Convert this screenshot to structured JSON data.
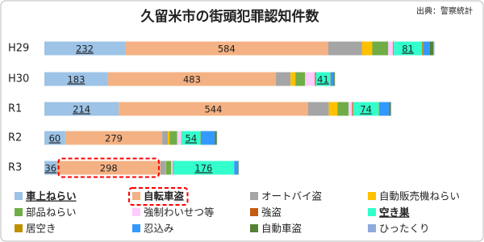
{
  "chart_data": {
    "type": "stacked-bar-horizontal",
    "title": "久留米市の街頭犯罪認知件数",
    "source": "出典：警察統計",
    "categories": [
      "H29",
      "H30",
      "R1",
      "R2",
      "R3"
    ],
    "series": [
      {
        "name": "車上ねらい",
        "color": "#9dc3e6",
        "values": [
          232,
          183,
          214,
          60,
          36
        ],
        "show_labels": true,
        "emphasis": "underline"
      },
      {
        "name": "自転車盗",
        "color": "#f4b183",
        "values": [
          584,
          483,
          544,
          279,
          298
        ],
        "show_labels": true,
        "emphasis": "box"
      },
      {
        "name": "オートバイ盗",
        "color": "#a5a5a5",
        "values": [
          97,
          42,
          60,
          16,
          15
        ]
      },
      {
        "name": "自動販売機ねらい",
        "color": "#ffc000",
        "values": [
          30,
          14,
          25,
          5,
          1
        ]
      },
      {
        "name": "部品ねらい",
        "color": "#70ad47",
        "values": [
          46,
          28,
          32,
          22,
          15
        ]
      },
      {
        "name": "強制わいせつ等",
        "color": "#ffccff",
        "values": [
          14,
          28,
          10,
          12,
          4
        ]
      },
      {
        "name": "強盗",
        "color": "#c55a11",
        "values": [
          2,
          3,
          3,
          1,
          1
        ]
      },
      {
        "name": "空き巣",
        "color": "#33ffcc",
        "values": [
          81,
          41,
          74,
          54,
          176
        ],
        "show_labels": true,
        "emphasis": "underline"
      },
      {
        "name": "居空き",
        "color": "#bf9000",
        "values": [
          3,
          1,
          1,
          1,
          0
        ]
      },
      {
        "name": "忍込み",
        "color": "#3399ff",
        "values": [
          20,
          8,
          28,
          40,
          10
        ]
      },
      {
        "name": "自動車盗",
        "color": "#548235",
        "values": [
          10,
          4,
          5,
          6,
          2
        ]
      },
      {
        "name": "ひったくり",
        "color": "#8faadc",
        "values": [
          3,
          1,
          2,
          1,
          1
        ]
      }
    ],
    "highlight_color": "#ff0000"
  }
}
